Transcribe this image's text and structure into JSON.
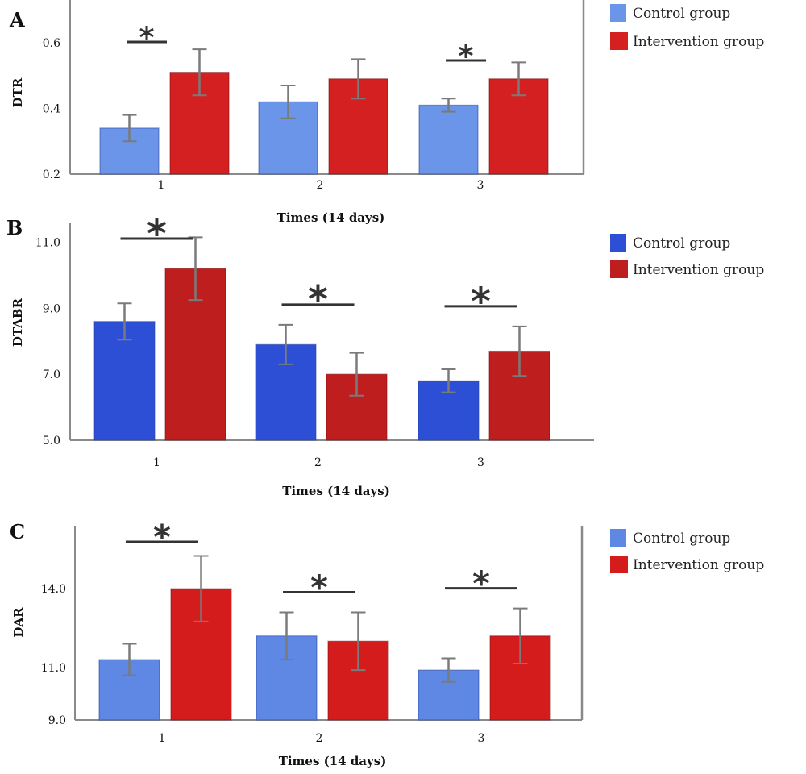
{
  "colors": {
    "control_A": "#6b95e8",
    "intervention_A": "#d42020",
    "control_B": "#2c4fd6",
    "intervention_B": "#bf1e1e",
    "control_C": "#5f87e4",
    "intervention_C": "#d41c1c",
    "error_bar": "#7a7a7a",
    "axis": "#8a8a8a",
    "significance_bar": "#333333"
  },
  "legend": {
    "control": "Control group",
    "intervention": "Intervention group"
  },
  "chart_data": [
    {
      "panel": "A",
      "type": "bar",
      "ylabel": "DTR",
      "xlabel": "Times (14 days)",
      "categories": [
        "1",
        "2",
        "3"
      ],
      "category_labels": [
        "1",
        "2",
        "3"
      ],
      "ylim": [
        0.2,
        0.73
      ],
      "yticks": [
        0.2,
        0.4,
        0.6
      ],
      "ytick_labels": [
        "0.2",
        "0.4",
        "0.6"
      ],
      "series": [
        {
          "name": "Control group",
          "values": [
            0.34,
            0.42,
            0.41
          ],
          "errors": [
            0.04,
            0.05,
            0.02
          ]
        },
        {
          "name": "Intervention group",
          "values": [
            0.51,
            0.49,
            0.49
          ],
          "errors": [
            0.07,
            0.06,
            0.05
          ]
        }
      ],
      "significance": [
        {
          "category": "1",
          "label": "*"
        },
        {
          "category": "3",
          "label": "*"
        }
      ],
      "legend_position": "top-right",
      "grid": false
    },
    {
      "panel": "B",
      "type": "bar",
      "ylabel": "DTABR",
      "xlabel": "Times (14 days)",
      "categories": [
        "1",
        "2",
        "3"
      ],
      "category_labels": [
        "1",
        "2",
        "3"
      ],
      "ylim": [
        5.0,
        11.6
      ],
      "yticks": [
        5.0,
        7.0,
        9.0,
        11.0
      ],
      "ytick_labels": [
        "5.0",
        "7.0",
        "9.0",
        "11.0"
      ],
      "series": [
        {
          "name": "Control group",
          "values": [
            8.6,
            7.9,
            6.8
          ],
          "errors": [
            0.55,
            0.6,
            0.35
          ]
        },
        {
          "name": "Intervention group",
          "values": [
            10.2,
            7.0,
            7.7
          ],
          "errors": [
            0.95,
            0.65,
            0.75
          ]
        }
      ],
      "significance": [
        {
          "category": "1",
          "label": "*"
        },
        {
          "category": "2",
          "label": "*"
        },
        {
          "category": "3",
          "label": "*"
        }
      ],
      "legend_position": "top-right",
      "grid": false
    },
    {
      "panel": "C",
      "type": "bar",
      "ylabel": "DAR",
      "xlabel": "Times (14 days)",
      "categories": [
        "1",
        "2",
        "3"
      ],
      "category_labels": [
        "1",
        "2",
        "3"
      ],
      "ylim": [
        9.0,
        16.4
      ],
      "yticks": [
        9.0,
        11.0,
        14.0
      ],
      "ytick_labels": [
        "9.0",
        "11.0",
        "14.0"
      ],
      "series": [
        {
          "name": "Control group",
          "values": [
            11.3,
            12.2,
            10.9
          ],
          "errors": [
            0.6,
            0.9,
            0.45
          ]
        },
        {
          "name": "Intervention group",
          "values": [
            14.0,
            12.0,
            12.2
          ],
          "errors": [
            1.25,
            1.1,
            1.05
          ]
        }
      ],
      "significance": [
        {
          "category": "1",
          "label": "*"
        },
        {
          "category": "2",
          "label": "*"
        },
        {
          "category": "3",
          "label": "*"
        }
      ],
      "legend_position": "top-right",
      "grid": false
    }
  ]
}
